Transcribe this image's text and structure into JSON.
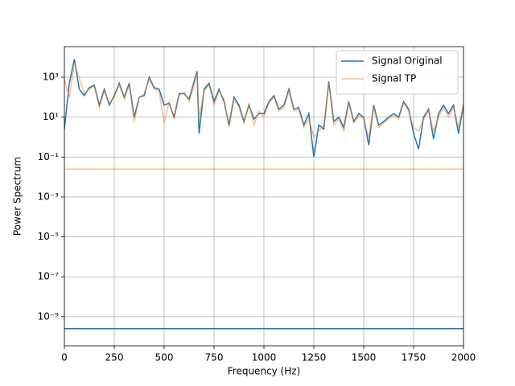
{
  "chart_data": {
    "type": "line",
    "xlabel": "Frequency (Hz)",
    "ylabel": "Power Spectrum",
    "xlim": [
      0,
      2000
    ],
    "ylim": [
      3.5e-11,
      34000
    ],
    "log_y": true,
    "grid": true,
    "legend": "upper right",
    "xticks": [
      0,
      250,
      500,
      750,
      1000,
      1250,
      1500,
      1750,
      2000
    ],
    "yticks": [
      {
        "value": 1e-09,
        "label": "10⁻⁹"
      },
      {
        "value": 1e-07,
        "label": "10⁻⁷"
      },
      {
        "value": 1e-05,
        "label": "10⁻⁵"
      },
      {
        "value": 0.001,
        "label": "10⁻³"
      },
      {
        "value": 0.1,
        "label": "10⁻¹"
      },
      {
        "value": 10,
        "label": "10¹"
      },
      {
        "value": 1000,
        "label": "10³"
      }
    ],
    "series": [
      {
        "name": "Signal Original",
        "color": "#1f77b4",
        "opacity": 1,
        "x": [
          0,
          25,
          50,
          75,
          100,
          125,
          150,
          175,
          200,
          225,
          250,
          275,
          300,
          325,
          350,
          375,
          400,
          425,
          450,
          475,
          500,
          525,
          550,
          575,
          600,
          625,
          650,
          665,
          675,
          700,
          725,
          750,
          775,
          800,
          825,
          850,
          875,
          900,
          925,
          950,
          975,
          1000,
          1025,
          1050,
          1075,
          1100,
          1125,
          1150,
          1175,
          1200,
          1225,
          1250,
          1275,
          1300,
          1325,
          1350,
          1375,
          1400,
          1425,
          1450,
          1475,
          1500,
          1525,
          1550,
          1575,
          1600,
          1625,
          1650,
          1675,
          1700,
          1725,
          1750,
          1775,
          1800,
          1825,
          1850,
          1875,
          1900,
          1925,
          1950,
          1975,
          2000,
          2000,
          0,
          2000
        ],
        "values": [
          2.5,
          500,
          8000,
          250,
          120,
          300,
          400,
          40,
          250,
          40,
          120,
          500,
          100,
          500,
          10,
          100,
          120,
          1000,
          300,
          250,
          40,
          50,
          10,
          150,
          150,
          80,
          600,
          2000,
          1.5,
          250,
          500,
          60,
          250,
          60,
          4,
          100,
          40,
          6,
          40,
          8,
          15,
          15,
          60,
          120,
          25,
          40,
          250,
          25,
          30,
          4,
          15,
          0.1,
          4,
          2.5,
          600,
          6,
          10,
          3,
          60,
          6,
          15,
          10,
          0.4,
          40,
          4,
          6,
          10,
          15,
          10,
          60,
          25,
          1.5,
          0.25,
          10,
          25,
          0.8,
          15,
          40,
          15,
          40,
          1.5,
          40,
          null,
          2.5e-10,
          2.5e-10
        ]
      },
      {
        "name": "Signal TP",
        "color": "#ff7f0e",
        "opacity": 0.5,
        "x": [
          0,
          25,
          50,
          75,
          100,
          125,
          150,
          175,
          200,
          225,
          250,
          275,
          300,
          325,
          350,
          375,
          400,
          425,
          450,
          475,
          500,
          525,
          550,
          575,
          600,
          625,
          650,
          665,
          675,
          700,
          725,
          750,
          775,
          800,
          825,
          850,
          875,
          900,
          925,
          950,
          975,
          1000,
          1025,
          1050,
          1075,
          1100,
          1125,
          1150,
          1175,
          1200,
          1225,
          1250,
          1275,
          1300,
          1325,
          1350,
          1375,
          1400,
          1425,
          1450,
          1475,
          1500,
          1525,
          1550,
          1575,
          1600,
          1625,
          1650,
          1675,
          1700,
          1725,
          1750,
          1775,
          1800,
          1825,
          1850,
          1875,
          1900,
          1925,
          1950,
          1975,
          2000,
          2000,
          0,
          2000
        ],
        "values": [
          800,
          100,
          5000,
          900,
          150,
          250,
          350,
          30,
          200,
          50,
          100,
          400,
          80,
          400,
          6,
          90,
          150,
          800,
          250,
          200,
          5,
          60,
          8,
          120,
          180,
          60,
          400,
          1500,
          10,
          200,
          400,
          40,
          200,
          80,
          3,
          80,
          30,
          5,
          50,
          4,
          20,
          10,
          50,
          100,
          20,
          30,
          200,
          20,
          25,
          3,
          8,
          1,
          2,
          4,
          500,
          4,
          8,
          2,
          50,
          5,
          12,
          8,
          1,
          30,
          3,
          5,
          8,
          12,
          8,
          50,
          20,
          3,
          2,
          8,
          20,
          2,
          10,
          30,
          10,
          30,
          3,
          50,
          null,
          0.025,
          0.025
        ]
      }
    ]
  }
}
